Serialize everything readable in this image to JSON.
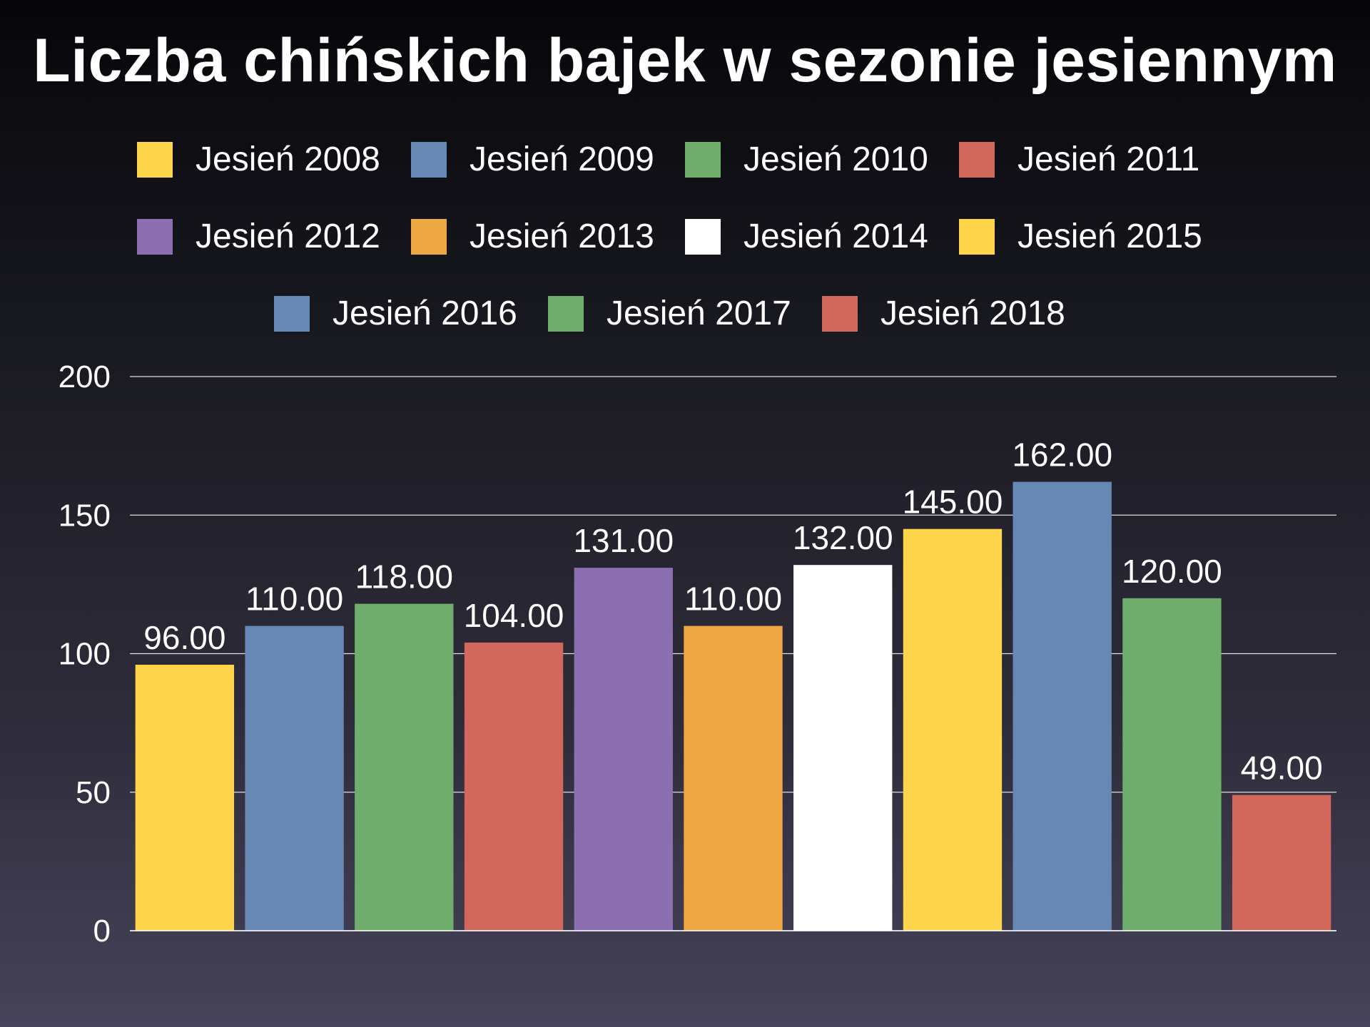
{
  "chart_data": {
    "type": "bar",
    "title": "Liczba chińskich bajek w sezonie jesiennym",
    "xlabel": "",
    "ylabel": "",
    "ylim": [
      0,
      200
    ],
    "yticks": [
      "0",
      "50",
      "100",
      "150",
      "200"
    ],
    "grid": true,
    "legend_position": "top",
    "categories": [
      "Jesień 2008",
      "Jesień 2009",
      "Jesień 2010",
      "Jesień 2011",
      "Jesień 2012",
      "Jesień 2013",
      "Jesień 2014",
      "Jesień 2015",
      "Jesień 2016",
      "Jesień 2017",
      "Jesień 2018"
    ],
    "values": [
      96,
      110,
      118,
      104,
      131,
      110,
      132,
      145,
      162,
      120,
      49
    ],
    "value_labels": [
      "96.00",
      "110.00",
      "118.00",
      "104.00",
      "131.00",
      "110.00",
      "132.00",
      "145.00",
      "162.00",
      "120.00",
      "49.00"
    ],
    "colors": [
      "#fcd54b",
      "#6788b5",
      "#6fad6c",
      "#d2675c",
      "#8b6fb1",
      "#eda844",
      "#ffffff",
      "#fcd54b",
      "#6788b5",
      "#6fad6c",
      "#d2675c"
    ]
  }
}
